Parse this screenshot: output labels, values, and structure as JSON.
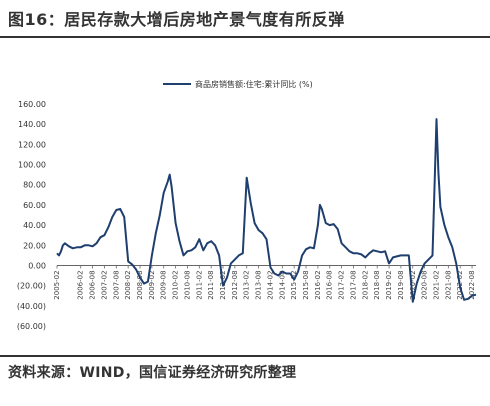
{
  "title": "图16：居民存款大增后房地产景气度有所反弹",
  "source": "资料来源：WIND，国信证券经济研究所整理",
  "chart_data": {
    "type": "line",
    "series": [
      {
        "name": "商品房销售额:住宅:累计同比 (%)",
        "color": "#1f3f6e",
        "points": [
          [
            "2005-02",
            12
          ],
          [
            "2005-03",
            10
          ],
          [
            "2005-04",
            14
          ],
          [
            "2005-05",
            20
          ],
          [
            "2005-06",
            22
          ],
          [
            "2005-08",
            19
          ],
          [
            "2005-10",
            17
          ],
          [
            "2005-12",
            18
          ],
          [
            "2006-02",
            18
          ],
          [
            "2006-04",
            20
          ],
          [
            "2006-06",
            20
          ],
          [
            "2006-08",
            19
          ],
          [
            "2006-10",
            22
          ],
          [
            "2006-12",
            28
          ],
          [
            "2007-02",
            30
          ],
          [
            "2007-04",
            38
          ],
          [
            "2007-06",
            48
          ],
          [
            "2007-08",
            55
          ],
          [
            "2007-10",
            56
          ],
          [
            "2007-12",
            48
          ],
          [
            "2008-02",
            4
          ],
          [
            "2008-04",
            1
          ],
          [
            "2008-06",
            -4
          ],
          [
            "2008-08",
            -12
          ],
          [
            "2008-10",
            -18
          ],
          [
            "2008-12",
            -16
          ],
          [
            "2009-02",
            10
          ],
          [
            "2009-04",
            32
          ],
          [
            "2009-06",
            50
          ],
          [
            "2009-08",
            72
          ],
          [
            "2009-10",
            83
          ],
          [
            "2009-11",
            90
          ],
          [
            "2009-12",
            78
          ],
          [
            "2010-02",
            42
          ],
          [
            "2010-04",
            24
          ],
          [
            "2010-06",
            10
          ],
          [
            "2010-08",
            14
          ],
          [
            "2010-10",
            15
          ],
          [
            "2010-12",
            18
          ],
          [
            "2011-02",
            26
          ],
          [
            "2011-04",
            15
          ],
          [
            "2011-06",
            22
          ],
          [
            "2011-08",
            24
          ],
          [
            "2011-10",
            20
          ],
          [
            "2011-12",
            10
          ],
          [
            "2012-02",
            -20
          ],
          [
            "2012-04",
            -12
          ],
          [
            "2012-06",
            2
          ],
          [
            "2012-08",
            6
          ],
          [
            "2012-10",
            10
          ],
          [
            "2012-12",
            12
          ],
          [
            "2013-02",
            87
          ],
          [
            "2013-04",
            62
          ],
          [
            "2013-06",
            42
          ],
          [
            "2013-08",
            35
          ],
          [
            "2013-10",
            32
          ],
          [
            "2013-12",
            26
          ],
          [
            "2014-02",
            -2
          ],
          [
            "2014-04",
            -8
          ],
          [
            "2014-06",
            -10
          ],
          [
            "2014-08",
            -6
          ],
          [
            "2014-10",
            -8
          ],
          [
            "2014-12",
            -8
          ],
          [
            "2015-02",
            -14
          ],
          [
            "2015-04",
            -6
          ],
          [
            "2015-06",
            10
          ],
          [
            "2015-08",
            16
          ],
          [
            "2015-10",
            18
          ],
          [
            "2015-12",
            17
          ],
          [
            "2016-02",
            40
          ],
          [
            "2016-03",
            60
          ],
          [
            "2016-04",
            56
          ],
          [
            "2016-06",
            42
          ],
          [
            "2016-08",
            40
          ],
          [
            "2016-10",
            41
          ],
          [
            "2016-12",
            36
          ],
          [
            "2017-02",
            22
          ],
          [
            "2017-04",
            18
          ],
          [
            "2017-06",
            14
          ],
          [
            "2017-08",
            12
          ],
          [
            "2017-10",
            12
          ],
          [
            "2017-12",
            11
          ],
          [
            "2018-02",
            8
          ],
          [
            "2018-04",
            12
          ],
          [
            "2018-06",
            15
          ],
          [
            "2018-08",
            14
          ],
          [
            "2018-10",
            13
          ],
          [
            "2018-12",
            14
          ],
          [
            "2019-02",
            2
          ],
          [
            "2019-04",
            8
          ],
          [
            "2019-06",
            9
          ],
          [
            "2019-08",
            10
          ],
          [
            "2019-10",
            10
          ],
          [
            "2019-12",
            10
          ],
          [
            "2020-02",
            -36
          ],
          [
            "2020-04",
            -18
          ],
          [
            "2020-06",
            -6
          ],
          [
            "2020-08",
            2
          ],
          [
            "2020-10",
            6
          ],
          [
            "2020-12",
            10
          ],
          [
            "2021-02",
            145
          ],
          [
            "2021-03",
            92
          ],
          [
            "2021-04",
            58
          ],
          [
            "2021-06",
            40
          ],
          [
            "2021-08",
            28
          ],
          [
            "2021-10",
            18
          ],
          [
            "2021-12",
            2
          ],
          [
            "2022-02",
            -22
          ],
          [
            "2022-04",
            -34
          ],
          [
            "2022-06",
            -33
          ],
          [
            "2022-08",
            -30
          ],
          [
            "2022-10",
            -29
          ]
        ]
      }
    ],
    "x_ticks": [
      "2005-02",
      "2006-02",
      "2006-08",
      "2007-02",
      "2007-08",
      "2008-02",
      "2008-08",
      "2009-02",
      "2009-08",
      "2010-02",
      "2010-08",
      "2011-02",
      "2011-08",
      "2012-02",
      "2012-08",
      "2013-02",
      "2013-08",
      "2014-02",
      "2014-08",
      "2015-02",
      "2015-08",
      "2016-02",
      "2016-08",
      "2017-02",
      "2017-08",
      "2018-02",
      "2018-08",
      "2019-02",
      "2019-08",
      "2020-02",
      "2020-08",
      "2021-02",
      "2021-08",
      "2022-02",
      "2022-08"
    ],
    "y_ticks": [
      "160.00",
      "140.00",
      "120.00",
      "100.00",
      "80.00",
      "60.00",
      "40.00",
      "20.00",
      "0.00",
      "(20.00)",
      "(40.00)",
      "(60.00)"
    ],
    "ylim": [
      -60,
      160
    ],
    "xlim": [
      "2005-02",
      "2022-10"
    ],
    "grid": false,
    "legend_position": "top-center"
  }
}
